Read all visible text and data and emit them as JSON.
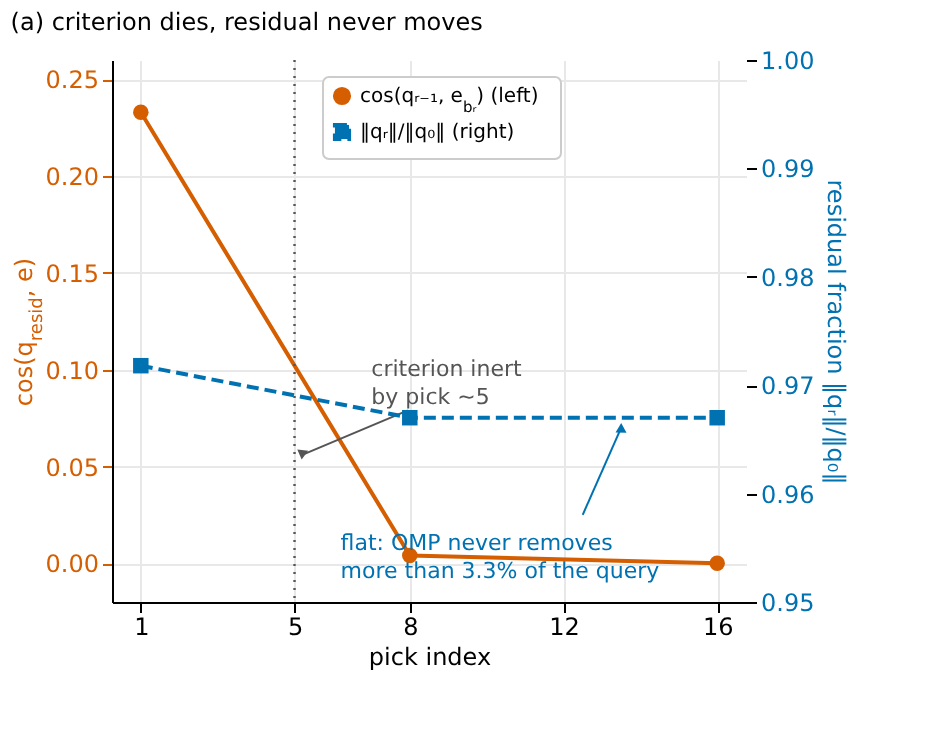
{
  "chart_data": {
    "type": "line",
    "title": "(a) criterion dies, residual never moves",
    "xlabel": "pick index",
    "ylabel": "cos(q$_{resid}$, e)",
    "y2label": "residual fraction ‖qᵣ‖/‖q₀‖",
    "x": [
      1,
      8,
      16
    ],
    "series": [
      {
        "name": "cos(qᵣ₋₁, e$_{bᵣ}$)  (left)",
        "color": "#d55e00",
        "values": [
          0.233,
          0.004,
          0.0
        ],
        "marker": "circle",
        "line_style": "solid"
      },
      {
        "name": "‖qᵣ‖/‖q₀‖  (right)",
        "color": "#0072b2",
        "values": [
          0.9718,
          0.967,
          0.967
        ],
        "marker": "square",
        "line_style": "dashed",
        "axis": "y2"
      }
    ],
    "xlim": [
      0.25,
      16.75
    ],
    "xticks": [
      1,
      5,
      8,
      12,
      16
    ],
    "ylim": [
      -0.02,
      0.26
    ],
    "yticks": [
      {
        "value": 0,
        "label": "0.00"
      },
      0.05,
      {
        "value": 0.1,
        "label": "0.10"
      },
      0.15,
      {
        "value": 0.2,
        "label": "0.20"
      },
      0.25
    ],
    "y2lim": [
      0.95,
      1.0
    ],
    "y2ticks": [
      0.95,
      0.96,
      0.97,
      0.98,
      0.99,
      {
        "value": 1,
        "label": "1.00"
      }
    ],
    "ref_lines": [
      {
        "axis": "x",
        "value": 5,
        "color": "#555555",
        "line_style": "dotted"
      }
    ],
    "annotations": [
      {
        "text": "criterion inert\nby pick ~5",
        "x": 5.2,
        "y": 0.056
      },
      {
        "text": "flat: OMP never removes\nmore than 3.3% of the query",
        "x": 13.5,
        "y": 0.07
      }
    ],
    "grid": true,
    "legend": "top"
  }
}
